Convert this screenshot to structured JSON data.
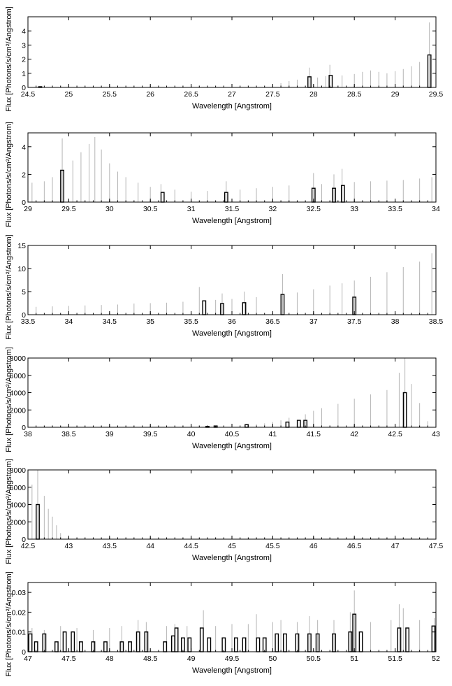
{
  "chart_data": [
    {
      "type": "bar",
      "xlabel": "Wavelength [Angstrom]",
      "ylabel": "Flux [Photons/s/cm²/Angstrom]",
      "xlim": [
        24.5,
        29.5
      ],
      "ylim": [
        0,
        5
      ],
      "xticks": [
        "24.5",
        "25",
        "25.5",
        "26",
        "26.5",
        "27",
        "27.5",
        "28",
        "28.5",
        "29",
        "29.5"
      ],
      "yticks": [
        "0",
        "1",
        "2",
        "3",
        "4"
      ],
      "errorbars": [
        [
          24.7,
          0.05
        ],
        [
          24.9,
          0.05
        ],
        [
          26.6,
          0.05
        ],
        [
          27.5,
          0.2
        ],
        [
          27.6,
          0.3
        ],
        [
          27.7,
          0.45
        ],
        [
          27.8,
          0.55
        ],
        [
          27.95,
          1.4
        ],
        [
          28.05,
          0.7
        ],
        [
          28.15,
          0.8
        ],
        [
          28.2,
          1.6
        ],
        [
          28.35,
          0.85
        ],
        [
          28.5,
          0.95
        ],
        [
          28.6,
          1.1
        ],
        [
          28.7,
          1.2
        ],
        [
          28.8,
          1.1
        ],
        [
          28.9,
          1.0
        ],
        [
          29.0,
          1.15
        ],
        [
          29.1,
          1.3
        ],
        [
          29.2,
          1.5
        ],
        [
          29.3,
          1.8
        ],
        [
          29.42,
          4.6
        ]
      ],
      "bars": [
        [
          24.65,
          0.05
        ],
        [
          27.95,
          0.75
        ],
        [
          28.21,
          0.85
        ],
        [
          29.42,
          2.3
        ]
      ]
    },
    {
      "type": "bar",
      "xlabel": "Wavelength [Angstrom]",
      "ylabel": "Flux [Photons/s/cm²/Angstrom]",
      "xlim": [
        29,
        34
      ],
      "ylim": [
        0,
        5
      ],
      "xticks": [
        "29",
        "29.5",
        "30",
        "30.5",
        "31",
        "31.5",
        "32",
        "32.5",
        "33",
        "33.5",
        "34"
      ],
      "yticks": [
        "0",
        "2",
        "4"
      ],
      "errorbars": [
        [
          29.05,
          1.4
        ],
        [
          29.2,
          1.5
        ],
        [
          29.3,
          1.8
        ],
        [
          29.42,
          4.6
        ],
        [
          29.55,
          3.0
        ],
        [
          29.65,
          3.6
        ],
        [
          29.75,
          4.2
        ],
        [
          29.82,
          4.7
        ],
        [
          29.9,
          3.8
        ],
        [
          30.0,
          2.8
        ],
        [
          30.1,
          2.2
        ],
        [
          30.2,
          1.8
        ],
        [
          30.35,
          1.4
        ],
        [
          30.5,
          1.1
        ],
        [
          30.63,
          1.3
        ],
        [
          30.8,
          0.9
        ],
        [
          31.0,
          0.75
        ],
        [
          31.2,
          0.8
        ],
        [
          31.43,
          1.5
        ],
        [
          31.6,
          0.9
        ],
        [
          31.8,
          1.0
        ],
        [
          32.0,
          1.1
        ],
        [
          32.2,
          1.2
        ],
        [
          32.5,
          2.1
        ],
        [
          32.6,
          1.3
        ],
        [
          32.75,
          2.0
        ],
        [
          32.85,
          2.4
        ],
        [
          33.0,
          1.45
        ],
        [
          33.2,
          1.5
        ],
        [
          33.4,
          1.55
        ],
        [
          33.6,
          1.6
        ],
        [
          33.8,
          1.7
        ],
        [
          33.95,
          1.8
        ]
      ],
      "bars": [
        [
          29.42,
          2.3
        ],
        [
          30.65,
          0.7
        ],
        [
          31.43,
          0.7
        ],
        [
          32.5,
          1.0
        ],
        [
          32.75,
          1.0
        ],
        [
          32.86,
          1.2
        ]
      ]
    },
    {
      "type": "bar",
      "xlabel": "Wavelength [Angstrom]",
      "ylabel": "Flux [Photons/s/cm²/Angstrom]",
      "xlim": [
        33.5,
        38.5
      ],
      "ylim": [
        0,
        15
      ],
      "xticks": [
        "33.5",
        "34",
        "34.5",
        "35",
        "35.5",
        "36",
        "36.5",
        "37",
        "37.5",
        "38",
        "38.5"
      ],
      "yticks": [
        "0",
        "5",
        "10",
        "15"
      ],
      "errorbars": [
        [
          33.6,
          1.7
        ],
        [
          33.8,
          1.8
        ],
        [
          34.0,
          1.9
        ],
        [
          34.2,
          2.0
        ],
        [
          34.4,
          2.1
        ],
        [
          34.6,
          2.2
        ],
        [
          34.8,
          2.4
        ],
        [
          35.0,
          2.5
        ],
        [
          35.2,
          2.6
        ],
        [
          35.4,
          2.8
        ],
        [
          35.6,
          6.0
        ],
        [
          35.8,
          3.2
        ],
        [
          35.88,
          4.6
        ],
        [
          36.0,
          3.4
        ],
        [
          36.15,
          5.0
        ],
        [
          36.3,
          3.8
        ],
        [
          36.62,
          8.8
        ],
        [
          36.8,
          4.8
        ],
        [
          37.0,
          5.5
        ],
        [
          37.2,
          6.3
        ],
        [
          37.35,
          6.8
        ],
        [
          37.5,
          7.4
        ],
        [
          37.7,
          8.2
        ],
        [
          37.9,
          9.2
        ],
        [
          38.1,
          10.3
        ],
        [
          38.3,
          11.5
        ],
        [
          38.45,
          13.3
        ]
      ],
      "bars": [
        [
          35.66,
          3.0
        ],
        [
          35.88,
          2.4
        ],
        [
          36.15,
          2.6
        ],
        [
          36.62,
          4.4
        ],
        [
          37.5,
          3.8
        ]
      ]
    },
    {
      "type": "bar",
      "xlabel": "Wavelength [Angstrom]",
      "ylabel": "Flux [Photons/s/cm²/Angstrom]",
      "xlim": [
        38,
        43
      ],
      "ylim": [
        0,
        8000
      ],
      "xticks": [
        "38",
        "38.5",
        "39",
        "39.5",
        "40",
        "40.5",
        "41",
        "41.5",
        "42",
        "42.5",
        "43"
      ],
      "yticks": [
        "0",
        "2000",
        "4000",
        "6000",
        "8000"
      ],
      "errorbars": [
        [
          40.2,
          200
        ],
        [
          40.5,
          300
        ],
        [
          40.7,
          400
        ],
        [
          40.8,
          350
        ],
        [
          40.9,
          450
        ],
        [
          41.0,
          600
        ],
        [
          41.1,
          800
        ],
        [
          41.2,
          1100
        ],
        [
          41.4,
          1500
        ],
        [
          41.5,
          1900
        ],
        [
          41.6,
          2200
        ],
        [
          41.8,
          2700
        ],
        [
          42.0,
          3300
        ],
        [
          42.2,
          3800
        ],
        [
          42.4,
          4300
        ],
        [
          42.55,
          6300
        ],
        [
          42.62,
          8000
        ],
        [
          42.7,
          5000
        ],
        [
          42.8,
          2800
        ],
        [
          42.9,
          700
        ]
      ],
      "bars": [
        [
          40.2,
          100
        ],
        [
          40.3,
          150
        ],
        [
          40.68,
          300
        ],
        [
          41.18,
          600
        ],
        [
          41.32,
          800
        ],
        [
          41.4,
          800
        ],
        [
          42.62,
          4000
        ]
      ]
    },
    {
      "type": "bar",
      "xlabel": "Wavelength [Angstrom]",
      "ylabel": "Flux [Photons/s/cm²/Angstrom]",
      "xlim": [
        42.5,
        47.5
      ],
      "ylim": [
        0,
        8000
      ],
      "xticks": [
        "42.5",
        "43",
        "43.5",
        "44",
        "44.5",
        "45",
        "45.5",
        "46",
        "46.5",
        "47",
        "47.5"
      ],
      "yticks": [
        "0",
        "2000",
        "4000",
        "6000",
        "8000"
      ],
      "errorbars": [
        [
          42.55,
          6300
        ],
        [
          42.62,
          8000
        ],
        [
          42.7,
          5000
        ],
        [
          42.75,
          3500
        ],
        [
          42.8,
          2600
        ],
        [
          42.85,
          1600
        ],
        [
          42.9,
          700
        ],
        [
          43.0,
          200
        ]
      ],
      "bars": [
        [
          42.62,
          4000
        ]
      ]
    },
    {
      "type": "bar",
      "xlabel": "Wavelength [Angstrom]",
      "ylabel": "Flux [Photons/s/cm²/Angstrom]",
      "xlim": [
        47,
        52
      ],
      "ylim": [
        0,
        0.035
      ],
      "xticks": [
        "47",
        "47.5",
        "48",
        "48.5",
        "49",
        "49.5",
        "50",
        "50.5",
        "51",
        "51.5",
        "52"
      ],
      "yticks": [
        "0",
        "0.01",
        "0.02",
        "0.03"
      ],
      "errorbars": [
        [
          47.05,
          0.012
        ],
        [
          47.2,
          0.011
        ],
        [
          47.4,
          0.013
        ],
        [
          47.6,
          0.012
        ],
        [
          47.8,
          0.011
        ],
        [
          48.0,
          0.012
        ],
        [
          48.15,
          0.013
        ],
        [
          48.35,
          0.016
        ],
        [
          48.45,
          0.015
        ],
        [
          48.7,
          0.013
        ],
        [
          48.8,
          0.014
        ],
        [
          48.95,
          0.013
        ],
        [
          49.15,
          0.021
        ],
        [
          49.3,
          0.013
        ],
        [
          49.5,
          0.014
        ],
        [
          49.7,
          0.014
        ],
        [
          49.8,
          0.019
        ],
        [
          50.0,
          0.015
        ],
        [
          50.1,
          0.016
        ],
        [
          50.3,
          0.015
        ],
        [
          50.45,
          0.018
        ],
        [
          50.55,
          0.016
        ],
        [
          50.75,
          0.016
        ],
        [
          50.95,
          0.02
        ],
        [
          51.0,
          0.031
        ],
        [
          51.2,
          0.015
        ],
        [
          51.45,
          0.016
        ],
        [
          51.55,
          0.024
        ],
        [
          51.6,
          0.022
        ],
        [
          51.8,
          0.016
        ],
        [
          51.98,
          0.017
        ]
      ],
      "bars": [
        [
          47.03,
          0.009
        ],
        [
          47.1,
          0.005
        ],
        [
          47.2,
          0.009
        ],
        [
          47.35,
          0.005
        ],
        [
          47.45,
          0.01
        ],
        [
          47.55,
          0.01
        ],
        [
          47.65,
          0.005
        ],
        [
          47.8,
          0.005
        ],
        [
          47.95,
          0.005
        ],
        [
          48.15,
          0.005
        ],
        [
          48.25,
          0.005
        ],
        [
          48.35,
          0.01
        ],
        [
          48.45,
          0.01
        ],
        [
          48.68,
          0.005
        ],
        [
          48.78,
          0.008
        ],
        [
          48.82,
          0.012
        ],
        [
          48.9,
          0.007
        ],
        [
          48.98,
          0.007
        ],
        [
          49.13,
          0.012
        ],
        [
          49.22,
          0.007
        ],
        [
          49.4,
          0.007
        ],
        [
          49.55,
          0.007
        ],
        [
          49.65,
          0.007
        ],
        [
          49.82,
          0.007
        ],
        [
          49.9,
          0.007
        ],
        [
          50.05,
          0.009
        ],
        [
          50.15,
          0.009
        ],
        [
          50.3,
          0.009
        ],
        [
          50.45,
          0.009
        ],
        [
          50.55,
          0.009
        ],
        [
          50.75,
          0.009
        ],
        [
          50.95,
          0.01
        ],
        [
          51.0,
          0.019
        ],
        [
          51.08,
          0.01
        ],
        [
          51.55,
          0.012
        ],
        [
          51.65,
          0.012
        ],
        [
          51.97,
          0.013
        ]
      ]
    }
  ]
}
